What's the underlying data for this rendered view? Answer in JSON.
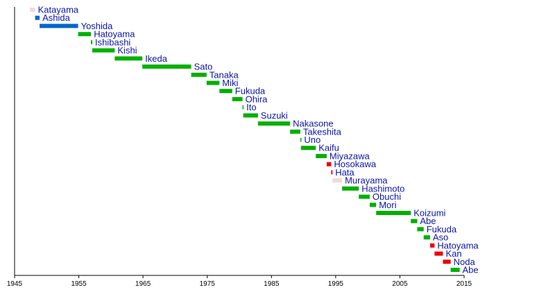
{
  "chart_data": {
    "type": "bar",
    "orientation": "horizontal-timeline",
    "title": "",
    "xlabel": "",
    "ylabel": "",
    "xlim": [
      1945,
      2015
    ],
    "x_ticks": [
      "1945",
      "1955",
      "1965",
      "1975",
      "1985",
      "1995",
      "2005",
      "2015"
    ],
    "grid": false,
    "legend": "none",
    "colors": {
      "green": "#00b000",
      "blue": "#0066cc",
      "red": "#ee0000",
      "pink": "#f4d7d7",
      "label": "#0b14a8",
      "axis": "#000000"
    },
    "bars": [
      {
        "label": "Katayama",
        "start": 1947.4,
        "end": 1948.2,
        "color": "pink"
      },
      {
        "label": "Ashida",
        "start": 1948.2,
        "end": 1948.9,
        "color": "blue"
      },
      {
        "label": "Yoshida",
        "start": 1948.9,
        "end": 1954.9,
        "color": "blue"
      },
      {
        "label": "Hatoyama",
        "start": 1954.9,
        "end": 1956.9,
        "color": "green"
      },
      {
        "label": "Ishibashi",
        "start": 1956.9,
        "end": 1957.1,
        "color": "green"
      },
      {
        "label": "Kishi",
        "start": 1957.1,
        "end": 1960.6,
        "color": "green"
      },
      {
        "label": "Ikeda",
        "start": 1960.6,
        "end": 1964.9,
        "color": "green"
      },
      {
        "label": "Sato",
        "start": 1964.9,
        "end": 1972.5,
        "color": "green"
      },
      {
        "label": "Tanaka",
        "start": 1972.5,
        "end": 1974.9,
        "color": "green"
      },
      {
        "label": "Miki",
        "start": 1974.9,
        "end": 1976.9,
        "color": "green"
      },
      {
        "label": "Fukuda",
        "start": 1976.9,
        "end": 1978.9,
        "color": "green"
      },
      {
        "label": "Ohira",
        "start": 1978.9,
        "end": 1980.5,
        "color": "green"
      },
      {
        "label": "Ito",
        "start": 1980.5,
        "end": 1980.6,
        "color": "green"
      },
      {
        "label": "Suzuki",
        "start": 1980.6,
        "end": 1982.9,
        "color": "green"
      },
      {
        "label": "Nakasone",
        "start": 1982.9,
        "end": 1987.9,
        "color": "green"
      },
      {
        "label": "Takeshita",
        "start": 1987.9,
        "end": 1989.5,
        "color": "green"
      },
      {
        "label": "Uno",
        "start": 1989.5,
        "end": 1989.6,
        "color": "green"
      },
      {
        "label": "Kaifu",
        "start": 1989.6,
        "end": 1991.9,
        "color": "green"
      },
      {
        "label": "Miyazawa",
        "start": 1991.9,
        "end": 1993.6,
        "color": "green"
      },
      {
        "label": "Hosokawa",
        "start": 1993.6,
        "end": 1994.3,
        "color": "red"
      },
      {
        "label": "Hata",
        "start": 1994.3,
        "end": 1994.5,
        "color": "red"
      },
      {
        "label": "Murayama",
        "start": 1994.5,
        "end": 1996.0,
        "color": "pink"
      },
      {
        "label": "Hashimoto",
        "start": 1996.0,
        "end": 1998.6,
        "color": "green"
      },
      {
        "label": "Obuchi",
        "start": 1998.6,
        "end": 2000.3,
        "color": "green"
      },
      {
        "label": "Mori",
        "start": 2000.3,
        "end": 2001.3,
        "color": "green"
      },
      {
        "label": "Koizumi",
        "start": 2001.3,
        "end": 2006.7,
        "color": "green"
      },
      {
        "label": "Abe",
        "start": 2006.7,
        "end": 2007.7,
        "color": "green"
      },
      {
        "label": "Fukuda",
        "start": 2007.7,
        "end": 2008.7,
        "color": "green"
      },
      {
        "label": "Aso",
        "start": 2008.7,
        "end": 2009.7,
        "color": "green"
      },
      {
        "label": "Hatoyama",
        "start": 2009.7,
        "end": 2010.4,
        "color": "red"
      },
      {
        "label": "Kan",
        "start": 2010.4,
        "end": 2011.7,
        "color": "red"
      },
      {
        "label": "Noda",
        "start": 2011.7,
        "end": 2012.9,
        "color": "red"
      },
      {
        "label": "Abe",
        "start": 2012.9,
        "end": 2014.3,
        "color": "green"
      }
    ]
  }
}
